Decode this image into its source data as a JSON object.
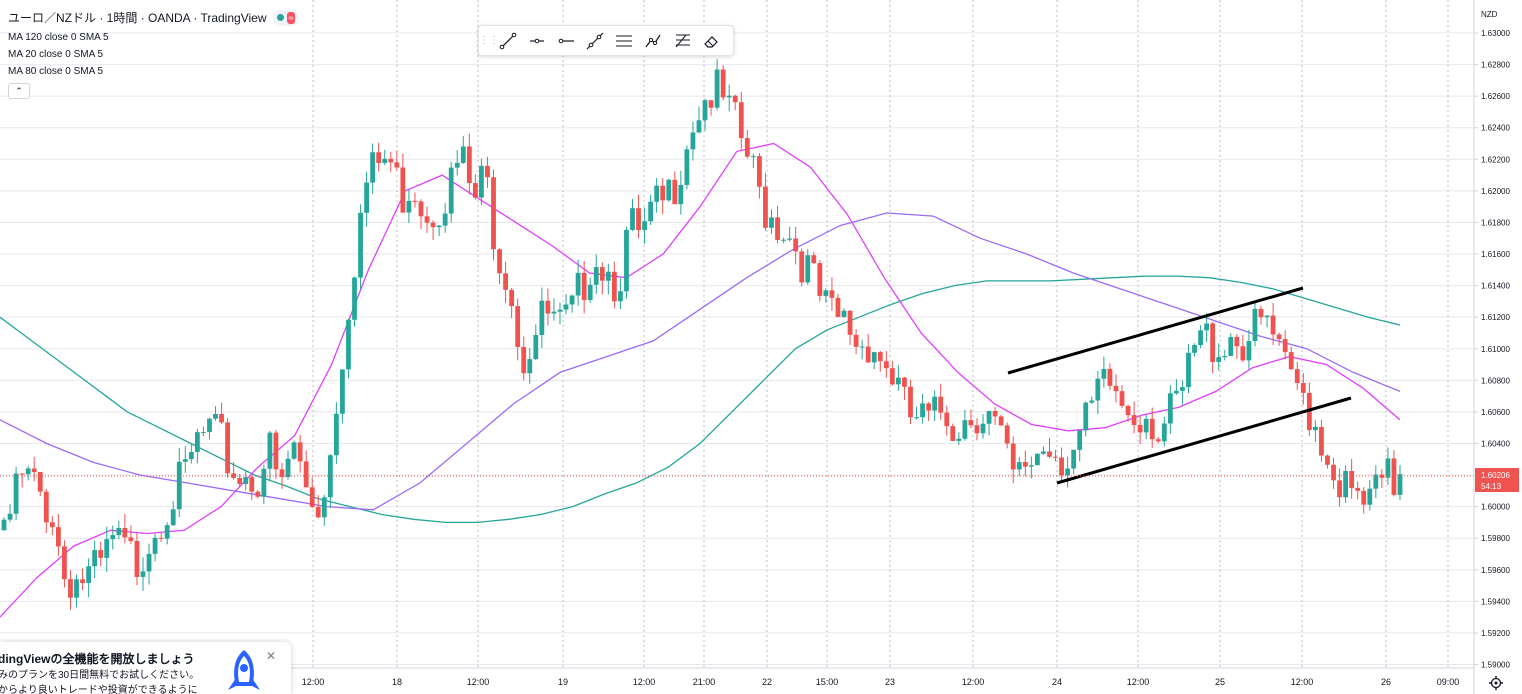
{
  "legend": {
    "title": "ユーロ／NZドル · 1時間 · OANDA · TradingView",
    "ma_lines": [
      "MA 120 close 0 SMA 5",
      "MA 20 close 0 SMA 5",
      "MA 80 close 0 SMA 5"
    ],
    "collapse_symbol": "⌃",
    "status_badge_symbol": "≈"
  },
  "price_axis": {
    "currency": "NZD",
    "labels": [
      "1.63000",
      "1.62800",
      "1.62600",
      "1.62400",
      "1.62200",
      "1.62000",
      "1.61800",
      "1.61600",
      "1.61400",
      "1.61200",
      "1.61000",
      "1.60800",
      "1.60600",
      "1.60400",
      "1.60200",
      "1.60000",
      "1.59800",
      "1.59600",
      "1.59400",
      "1.59200",
      "1.59000"
    ],
    "current_price": "1.60206",
    "countdown": "54:13"
  },
  "time_axis": {
    "labels": [
      "12:00",
      "18",
      "12:00",
      "19",
      "12:00",
      "21:00",
      "22",
      "15:00",
      "23",
      "12:00",
      "24",
      "12:00",
      "25",
      "12:00",
      "26",
      "09:00"
    ]
  },
  "promo": {
    "title": "dingViewの全機能を開放しましょう",
    "body_line1": "みのプランを30日間無料でお試しください。",
    "body_line2": "からより良いトレードや投資ができるように",
    "close_symbol": "✕"
  },
  "drawing_toolbar": {
    "tools": [
      "trend-line-icon",
      "horizontal-ray-icon",
      "horizontal-line-icon",
      "extended-line-icon",
      "parallel-channel-icon",
      "path-icon",
      "fib-retracement-icon",
      "eraser-icon"
    ]
  },
  "colors": {
    "bull": "#26a69a",
    "bear": "#ef5350",
    "ma120": "#26a69a",
    "ma20": "#e040fb",
    "ma80": "#9c6bf5",
    "current_price_tag": "#ef5350"
  },
  "chart_data": {
    "type": "candlestick",
    "symbol": "ユーロ／NZドル",
    "interval": "1時間",
    "price_range": [
      1.59,
      1.63
    ],
    "price_labels": [
      "1.63000",
      "1.62800",
      "1.62600",
      "1.62400",
      "1.62200",
      "1.62000",
      "1.61800",
      "1.61600",
      "1.61400",
      "1.61200",
      "1.61000",
      "1.60800",
      "1.60600",
      "1.60400",
      "1.60200",
      "1.60000",
      "1.59800",
      "1.59600",
      "1.59400",
      "1.59200",
      "1.59000"
    ],
    "time_labels": [
      "12:00",
      "18",
      "12:00",
      "19",
      "12:00",
      "21:00",
      "22",
      "15:00",
      "23",
      "12:00",
      "24",
      "12:00",
      "25",
      "12:00",
      "26",
      "09:00"
    ],
    "last_price": 1.60206,
    "close_path": [
      1.5985,
      1.602,
      1.6025,
      1.6015,
      1.6003,
      1.5965,
      1.5962,
      1.5963,
      1.5968,
      1.5985,
      1.598,
      1.5972,
      1.5988,
      1.6003,
      1.6015,
      1.6025,
      1.6048,
      1.6055,
      1.6048,
      1.603,
      1.6028,
      1.6025,
      1.6045,
      1.6015,
      1.605,
      1.602,
      1.6005,
      1.6035,
      1.61,
      1.616,
      1.621,
      1.6225,
      1.6228,
      1.6205,
      1.6215,
      1.6195,
      1.62,
      1.621,
      1.623,
      1.62,
      1.6218,
      1.617,
      1.6155,
      1.61,
      1.6115,
      1.613,
      1.612,
      1.6125,
      1.6148,
      1.617,
      1.616,
      1.615,
      1.6185,
      1.6175,
      1.6195,
      1.62,
      1.622,
      1.625,
      1.6265,
      1.6272,
      1.626,
      1.6245,
      1.6225,
      1.62,
      1.619,
      1.6185,
      1.617,
      1.6155,
      1.6135,
      1.6125,
      1.6125,
      1.611,
      1.6115,
      1.61,
      1.609,
      1.6065,
      1.6063,
      1.606,
      1.607,
      1.606,
      1.6065,
      1.607,
      1.6065,
      1.6045,
      1.602,
      1.6035,
      1.6045,
      1.6048,
      1.604,
      1.6045,
      1.606,
      1.608,
      1.6085,
      1.6072,
      1.6068,
      1.607,
      1.6055,
      1.6065,
      1.608,
      1.611,
      1.6115,
      1.611,
      1.6118,
      1.6112,
      1.6118,
      1.6125,
      1.61,
      1.6085,
      1.608,
      1.606,
      1.604,
      1.6025,
      1.6012,
      1.6008,
      1.6015,
      1.6025,
      1.602
    ],
    "ma120_path": [
      1.612,
      1.6105,
      1.609,
      1.6075,
      1.606,
      1.605,
      1.604,
      1.603,
      1.602,
      1.6013,
      1.6005,
      1.6,
      1.5995,
      1.5992,
      1.599,
      1.599,
      1.5992,
      1.5995,
      1.6,
      1.6008,
      1.6015,
      1.6025,
      1.604,
      1.606,
      1.608,
      1.61,
      1.6112,
      1.612,
      1.6128,
      1.6135,
      1.614,
      1.6143,
      1.6143,
      1.6143,
      1.6144,
      1.6145,
      1.6146,
      1.6146,
      1.6145,
      1.6142,
      1.6138,
      1.6132,
      1.6126,
      1.612,
      1.6115
    ],
    "ma20_path": [
      1.593,
      1.5955,
      1.5975,
      1.5985,
      1.5983,
      1.5985,
      1.6,
      1.6025,
      1.6045,
      1.609,
      1.615,
      1.62,
      1.621,
      1.6195,
      1.618,
      1.6165,
      1.6148,
      1.6145,
      1.616,
      1.619,
      1.6225,
      1.623,
      1.6215,
      1.6185,
      1.6145,
      1.611,
      1.6085,
      1.6065,
      1.6052,
      1.6048,
      1.605,
      1.6058,
      1.6063,
      1.6073,
      1.6088,
      1.6095,
      1.609,
      1.6075,
      1.6055
    ],
    "ma80_path": [
      1.6055,
      1.604,
      1.6028,
      1.602,
      1.6015,
      1.601,
      1.6005,
      1.6,
      1.5998,
      1.6015,
      1.604,
      1.6065,
      1.6085,
      1.6095,
      1.6105,
      1.6125,
      1.6145,
      1.6163,
      1.6178,
      1.6186,
      1.6184,
      1.617,
      1.616,
      1.6148,
      1.6138,
      1.6128,
      1.6118,
      1.6108,
      1.61,
      1.6085,
      1.6073
    ]
  }
}
